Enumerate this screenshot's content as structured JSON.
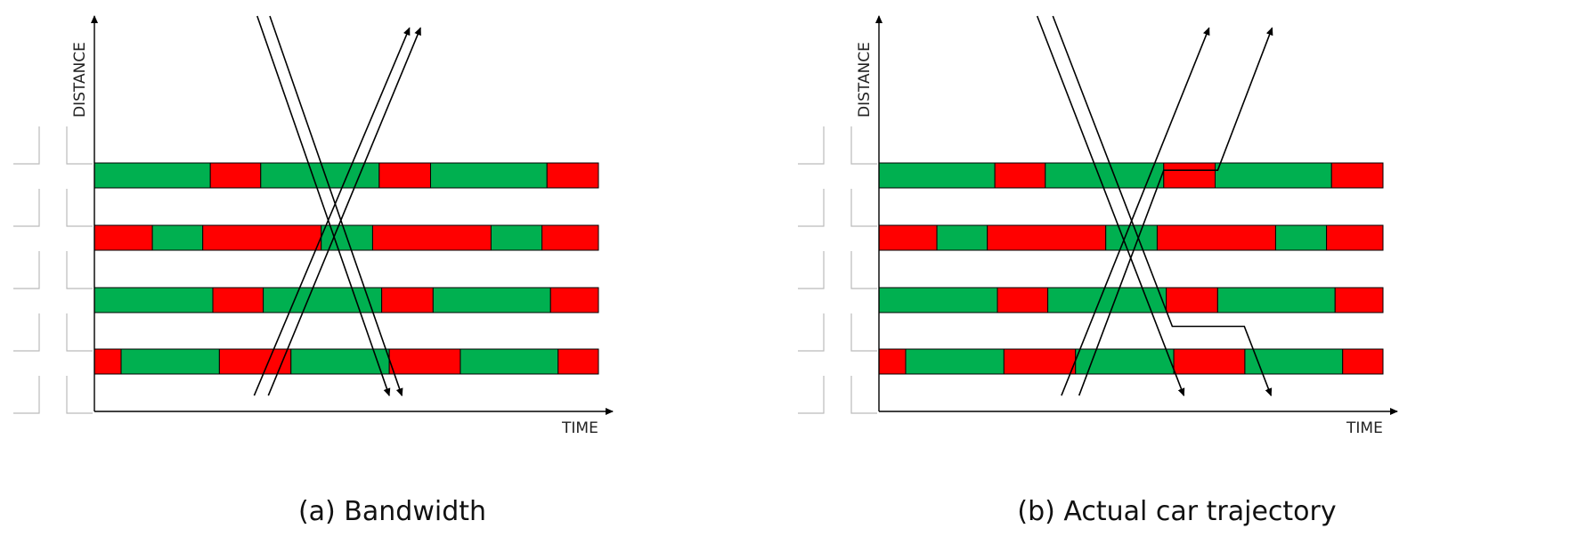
{
  "colors": {
    "green": "#00B050",
    "red": "#FF0000",
    "stroke": "#000000",
    "intersection": "#bbbbbb"
  },
  "panels": [
    {
      "caption": "(a) Bandwidth",
      "ylabel": "DISTANCE",
      "xlabel": "TIME",
      "signals": [
        {
          "row": 1,
          "phases": [
            [
              "g",
              0,
              0.23
            ],
            [
              "r",
              0.23,
              0.33
            ],
            [
              "g",
              0.33,
              0.565
            ],
            [
              "r",
              0.565,
              0.667
            ],
            [
              "g",
              0.667,
              0.898
            ],
            [
              "r",
              0.898,
              1.0
            ]
          ]
        },
        {
          "row": 2,
          "phases": [
            [
              "r",
              0,
              0.115
            ],
            [
              "g",
              0.115,
              0.215
            ],
            [
              "r",
              0.215,
              0.45
            ],
            [
              "g",
              0.45,
              0.552
            ],
            [
              "r",
              0.552,
              0.787
            ],
            [
              "g",
              0.787,
              0.888
            ],
            [
              "r",
              0.888,
              1.0
            ]
          ]
        },
        {
          "row": 3,
          "phases": [
            [
              "g",
              0,
              0.235
            ],
            [
              "r",
              0.235,
              0.335
            ],
            [
              "g",
              0.335,
              0.57
            ],
            [
              "r",
              0.57,
              0.672
            ],
            [
              "g",
              0.672,
              0.905
            ],
            [
              "r",
              0.905,
              1.0
            ]
          ]
        },
        {
          "row": 4,
          "phases": [
            [
              "r",
              0,
              0.053
            ],
            [
              "g",
              0.053,
              0.248
            ],
            [
              "r",
              0.248,
              0.39
            ],
            [
              "g",
              0.39,
              0.585
            ],
            [
              "r",
              0.585,
              0.726
            ],
            [
              "g",
              0.726,
              0.92
            ],
            [
              "r",
              0.92,
              1.0
            ]
          ]
        }
      ],
      "trajectories": [
        {
          "kind": "outbound",
          "points": [
            [
              0.317,
              0.96
            ],
            [
              0.625,
              0.03
            ]
          ]
        },
        {
          "kind": "outbound",
          "points": [
            [
              0.345,
              0.96
            ],
            [
              0.647,
              0.03
            ]
          ]
        },
        {
          "kind": "inbound",
          "points": [
            [
              0.323,
              0.0
            ],
            [
              0.585,
              0.96
            ]
          ]
        },
        {
          "kind": "inbound",
          "points": [
            [
              0.348,
              0.0
            ],
            [
              0.61,
              0.96
            ]
          ]
        }
      ]
    },
    {
      "caption": "(b) Actual car trajectory",
      "ylabel": "DISTANCE",
      "xlabel": "TIME",
      "signals": [
        {
          "row": 1,
          "phases": [
            [
              "g",
              0,
              0.23
            ],
            [
              "r",
              0.23,
              0.33
            ],
            [
              "g",
              0.33,
              0.565
            ],
            [
              "r",
              0.565,
              0.667
            ],
            [
              "g",
              0.667,
              0.898
            ],
            [
              "r",
              0.898,
              1.0
            ]
          ]
        },
        {
          "row": 2,
          "phases": [
            [
              "r",
              0,
              0.115
            ],
            [
              "g",
              0.115,
              0.215
            ],
            [
              "r",
              0.215,
              0.45
            ],
            [
              "g",
              0.45,
              0.552
            ],
            [
              "r",
              0.552,
              0.787
            ],
            [
              "g",
              0.787,
              0.888
            ],
            [
              "r",
              0.888,
              1.0
            ]
          ]
        },
        {
          "row": 3,
          "phases": [
            [
              "g",
              0,
              0.235
            ],
            [
              "r",
              0.235,
              0.335
            ],
            [
              "g",
              0.335,
              0.57
            ],
            [
              "r",
              0.57,
              0.672
            ],
            [
              "g",
              0.672,
              0.905
            ],
            [
              "r",
              0.905,
              1.0
            ]
          ]
        },
        {
          "row": 4,
          "phases": [
            [
              "r",
              0,
              0.053
            ],
            [
              "g",
              0.053,
              0.248
            ],
            [
              "r",
              0.248,
              0.39
            ],
            [
              "g",
              0.39,
              0.585
            ],
            [
              "r",
              0.585,
              0.726
            ],
            [
              "g",
              0.726,
              0.92
            ],
            [
              "r",
              0.92,
              1.0
            ]
          ]
        }
      ],
      "trajectories": [
        {
          "kind": "outbound",
          "points": [
            [
              0.362,
              0.96
            ],
            [
              0.655,
              0.03
            ]
          ]
        },
        {
          "kind": "outbound",
          "points": [
            [
              0.397,
              0.96
            ],
            [
              0.565,
              0.39
            ],
            [
              0.672,
              0.39
            ],
            [
              0.78,
              0.03
            ]
          ]
        },
        {
          "kind": "inbound",
          "points": [
            [
              0.314,
              0.0
            ],
            [
              0.605,
              0.96
            ]
          ]
        },
        {
          "kind": "inbound",
          "points": [
            [
              0.345,
              0.0
            ],
            [
              0.582,
              0.785
            ],
            [
              0.725,
              0.785
            ],
            [
              0.778,
              0.96
            ]
          ]
        }
      ]
    }
  ]
}
